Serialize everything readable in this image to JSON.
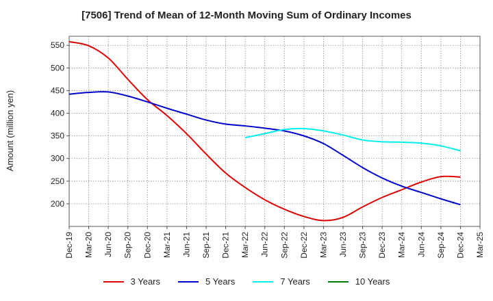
{
  "chart_data": {
    "type": "line",
    "title": "[7506]  Trend of Mean of 12-Month Moving Sum of Ordinary Incomes",
    "xlabel": "",
    "ylabel": "Amount (million yen)",
    "x_ticks": [
      "Dec-19",
      "Mar-20",
      "Jun-20",
      "Sep-20",
      "Dec-20",
      "Mar-21",
      "Jun-21",
      "Sep-21",
      "Dec-21",
      "Mar-22",
      "Jun-22",
      "Sep-22",
      "Dec-22",
      "Mar-23",
      "Jun-23",
      "Sep-23",
      "Dec-23",
      "Mar-24",
      "Jun-24",
      "Sep-24",
      "Dec-24",
      "Mar-25"
    ],
    "y_ticks": [
      200,
      250,
      300,
      350,
      400,
      450,
      500,
      550
    ],
    "ylim": [
      150,
      570
    ],
    "grid": true,
    "legend_position": "bottom",
    "series": [
      {
        "name": "3 Years",
        "color": "#dd0000",
        "points": [
          [
            "Dec-19",
            558
          ],
          [
            "Mar-20",
            549
          ],
          [
            "Jun-20",
            522
          ],
          [
            "Sep-20",
            475
          ],
          [
            "Dec-20",
            430
          ],
          [
            "Mar-21",
            395
          ],
          [
            "Jun-21",
            355
          ],
          [
            "Sep-21",
            310
          ],
          [
            "Dec-21",
            268
          ],
          [
            "Mar-22",
            236
          ],
          [
            "Jun-22",
            209
          ],
          [
            "Sep-22",
            188
          ],
          [
            "Dec-22",
            172
          ],
          [
            "Mar-23",
            163
          ],
          [
            "Jun-23",
            170
          ],
          [
            "Sep-23",
            193
          ],
          [
            "Dec-23",
            214
          ],
          [
            "Mar-24",
            231
          ],
          [
            "Jun-24",
            248
          ],
          [
            "Sep-24",
            260
          ],
          [
            "Dec-24",
            259
          ]
        ]
      },
      {
        "name": "5 Years",
        "color": "#0000cc",
        "points": [
          [
            "Dec-19",
            442
          ],
          [
            "Mar-20",
            446
          ],
          [
            "Jun-20",
            447
          ],
          [
            "Sep-20",
            438
          ],
          [
            "Dec-20",
            425
          ],
          [
            "Mar-21",
            411
          ],
          [
            "Jun-21",
            398
          ],
          [
            "Sep-21",
            385
          ],
          [
            "Dec-21",
            376
          ],
          [
            "Mar-22",
            372
          ],
          [
            "Jun-22",
            367
          ],
          [
            "Sep-22",
            361
          ],
          [
            "Dec-22",
            350
          ],
          [
            "Mar-23",
            333
          ],
          [
            "Jun-23",
            307
          ],
          [
            "Sep-23",
            280
          ],
          [
            "Dec-23",
            257
          ],
          [
            "Mar-24",
            239
          ],
          [
            "Jun-24",
            225
          ],
          [
            "Sep-24",
            211
          ],
          [
            "Dec-24",
            198
          ]
        ]
      },
      {
        "name": "7 Years",
        "color": "#00eeee",
        "points": [
          [
            "Mar-22",
            346
          ],
          [
            "Jun-22",
            355
          ],
          [
            "Sep-22",
            364
          ],
          [
            "Dec-22",
            366
          ],
          [
            "Mar-23",
            361
          ],
          [
            "Jun-23",
            352
          ],
          [
            "Sep-23",
            341
          ],
          [
            "Dec-23",
            337
          ],
          [
            "Mar-24",
            336
          ],
          [
            "Jun-24",
            334
          ],
          [
            "Sep-24",
            328
          ],
          [
            "Dec-24",
            317
          ]
        ]
      },
      {
        "name": "10 Years",
        "color": "#007700",
        "points": []
      }
    ]
  }
}
